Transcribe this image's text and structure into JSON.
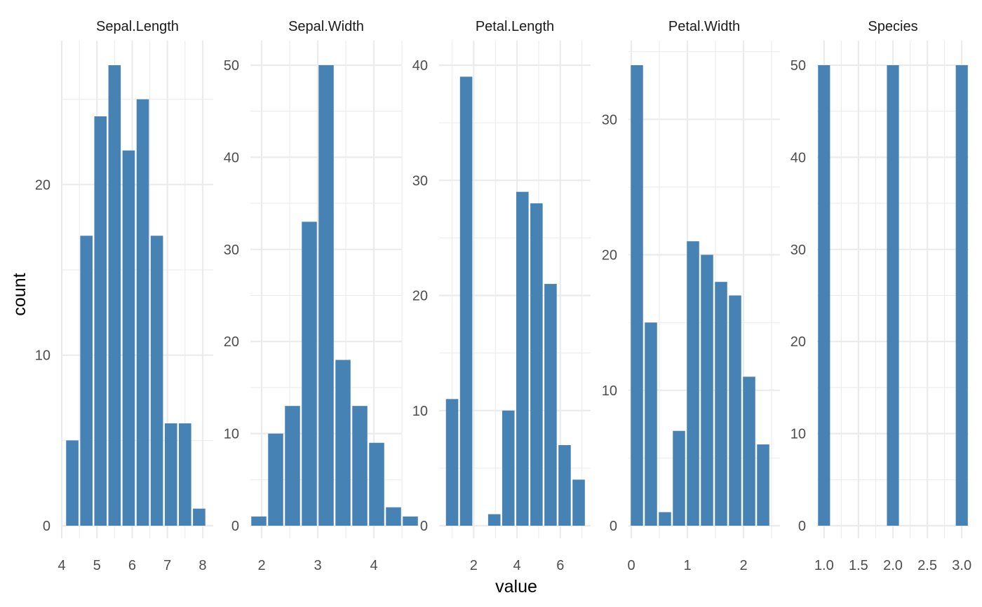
{
  "chart_data": {
    "type": "bar",
    "layout": "faceted histograms, one panel per variable, free scales",
    "xlabel": "value",
    "ylabel": "count",
    "bar_color": "#4682B4",
    "grid": true,
    "panels": [
      {
        "name": "Sepal.Length",
        "xlim": [
          4,
          8.3
        ],
        "ylim": [
          0,
          27
        ],
        "x_ticks": [
          "4",
          "5",
          "6",
          "7",
          "8"
        ],
        "y_ticks": [
          "0",
          "10",
          "20"
        ],
        "bins": [
          {
            "x": 4.3,
            "count": 5
          },
          {
            "x": 4.7,
            "count": 17
          },
          {
            "x": 5.1,
            "count": 24
          },
          {
            "x": 5.5,
            "count": 27
          },
          {
            "x": 5.9,
            "count": 22
          },
          {
            "x": 6.3,
            "count": 25
          },
          {
            "x": 6.7,
            "count": 17
          },
          {
            "x": 7.1,
            "count": 6
          },
          {
            "x": 7.5,
            "count": 6
          },
          {
            "x": 7.9,
            "count": 1
          }
        ]
      },
      {
        "name": "Sepal.Width",
        "xlim": [
          1.8,
          4.5
        ],
        "ylim": [
          0,
          50
        ],
        "x_ticks": [
          "2",
          "3",
          "4"
        ],
        "y_ticks": [
          "0",
          "10",
          "20",
          "30",
          "40",
          "50"
        ],
        "bins": [
          {
            "x": 1.95,
            "count": 1
          },
          {
            "x": 2.25,
            "count": 10
          },
          {
            "x": 2.55,
            "count": 13
          },
          {
            "x": 2.85,
            "count": 33
          },
          {
            "x": 3.15,
            "count": 50
          },
          {
            "x": 3.45,
            "count": 18
          },
          {
            "x": 3.75,
            "count": 13
          },
          {
            "x": 4.05,
            "count": 9
          },
          {
            "x": 4.35,
            "count": 2
          },
          {
            "x": 4.65,
            "count": 1
          }
        ]
      },
      {
        "name": "Petal.Length",
        "xlim": [
          0.4,
          7.4
        ],
        "ylim": [
          0,
          40
        ],
        "x_ticks": [
          "2",
          "4",
          "6"
        ],
        "y_ticks": [
          "0",
          "10",
          "20",
          "30",
          "40"
        ],
        "bins": [
          {
            "x": 1.0,
            "count": 11
          },
          {
            "x": 1.65,
            "count": 39
          },
          {
            "x": 2.3,
            "count": 0
          },
          {
            "x": 2.95,
            "count": 1
          },
          {
            "x": 3.6,
            "count": 10
          },
          {
            "x": 4.25,
            "count": 29
          },
          {
            "x": 4.9,
            "count": 28
          },
          {
            "x": 5.55,
            "count": 21
          },
          {
            "x": 6.2,
            "count": 7
          },
          {
            "x": 6.85,
            "count": 4
          }
        ]
      },
      {
        "name": "Petal.Width",
        "xlim": [
          -0.05,
          2.65
        ],
        "ylim": [
          0,
          34
        ],
        "x_ticks": [
          "0",
          "1",
          "2"
        ],
        "y_ticks": [
          "0",
          "10",
          "20",
          "30"
        ],
        "bins": [
          {
            "x": 0.1,
            "count": 34
          },
          {
            "x": 0.35,
            "count": 15
          },
          {
            "x": 0.6,
            "count": 1
          },
          {
            "x": 0.85,
            "count": 7
          },
          {
            "x": 1.1,
            "count": 21
          },
          {
            "x": 1.35,
            "count": 20
          },
          {
            "x": 1.6,
            "count": 18
          },
          {
            "x": 1.85,
            "count": 17
          },
          {
            "x": 2.1,
            "count": 11
          },
          {
            "x": 2.35,
            "count": 6
          }
        ]
      },
      {
        "name": "Species",
        "xlim": [
          0.9,
          3.1
        ],
        "ylim": [
          0,
          50
        ],
        "x_ticks": [
          "1.0",
          "1.5",
          "2.0",
          "2.5",
          "3.0"
        ],
        "y_ticks": [
          "0",
          "10",
          "20",
          "30",
          "40",
          "50"
        ],
        "bins": [
          {
            "x": 1.0,
            "count": 50
          },
          {
            "x": 1.2,
            "count": 0
          },
          {
            "x": 1.4,
            "count": 0
          },
          {
            "x": 1.6,
            "count": 0
          },
          {
            "x": 1.8,
            "count": 0
          },
          {
            "x": 2.0,
            "count": 50
          },
          {
            "x": 2.2,
            "count": 0
          },
          {
            "x": 2.4,
            "count": 0
          },
          {
            "x": 2.6,
            "count": 0
          },
          {
            "x": 2.8,
            "count": 0
          },
          {
            "x": 3.0,
            "count": 50
          }
        ]
      }
    ]
  }
}
